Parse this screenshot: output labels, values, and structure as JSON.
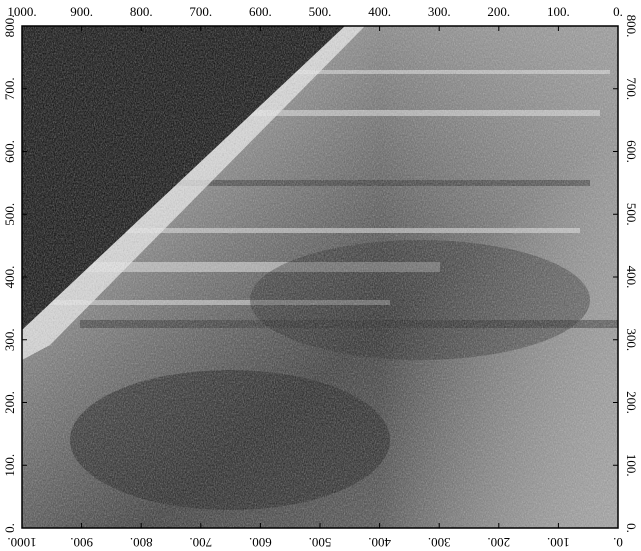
{
  "chart_data": {
    "type": "image",
    "xlim": [
      1000,
      0
    ],
    "ylim": [
      0,
      800
    ],
    "xticks": [
      {
        "value": 1000,
        "label": "1000."
      },
      {
        "value": 900,
        "label": "900."
      },
      {
        "value": 800,
        "label": "800."
      },
      {
        "value": 700,
        "label": "700."
      },
      {
        "value": 600,
        "label": "600."
      },
      {
        "value": 500,
        "label": "500."
      },
      {
        "value": 400,
        "label": "400."
      },
      {
        "value": 300,
        "label": "300."
      },
      {
        "value": 200,
        "label": "200."
      },
      {
        "value": 100,
        "label": "100."
      },
      {
        "value": 0,
        "label": "0."
      }
    ],
    "yticks": [
      {
        "value": 0,
        "label": "0."
      },
      {
        "value": 100,
        "label": "100."
      },
      {
        "value": 200,
        "label": "200."
      },
      {
        "value": 300,
        "label": "300."
      },
      {
        "value": 400,
        "label": "400."
      },
      {
        "value": 500,
        "label": "500."
      },
      {
        "value": 600,
        "label": "600."
      },
      {
        "value": 700,
        "label": "700."
      },
      {
        "value": 800,
        "label": "800."
      }
    ]
  }
}
